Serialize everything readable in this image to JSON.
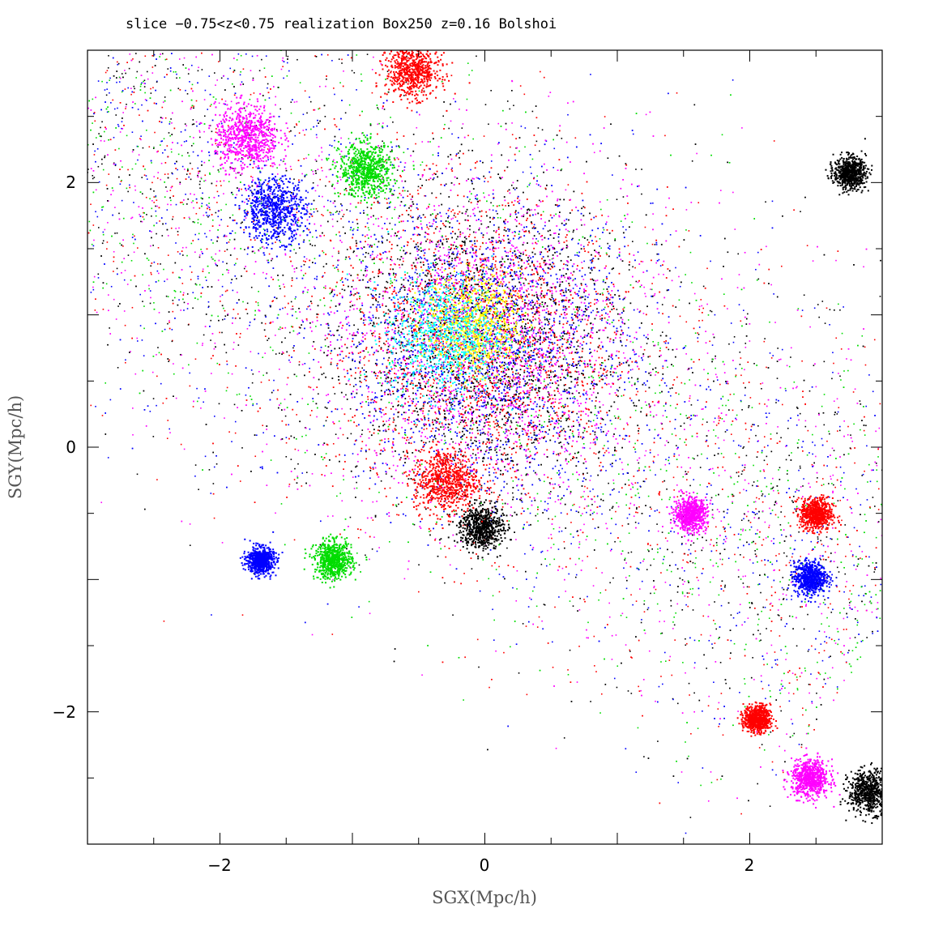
{
  "chart_data": {
    "type": "scatter",
    "title": "slice −0.75<z<0.75 realization Box250 z=0.16 Bolshoi",
    "xlabel": "SGX(Mpc/h)",
    "ylabel": "SGY(Mpc/h)",
    "xlim": [
      -3,
      3
    ],
    "ylim": [
      -3,
      3
    ],
    "x_ticks": [
      -2,
      0,
      2
    ],
    "y_ticks": [
      -2,
      0,
      2
    ],
    "x_tick_labels": [
      "−2",
      "0",
      "2"
    ],
    "y_tick_labels": [
      "−2",
      "0",
      "2"
    ],
    "grid": false,
    "legend": "none",
    "series_colors": [
      "#000000",
      "#ff0000",
      "#0000ff",
      "#00dd00",
      "#ff00ff",
      "#00ffff",
      "#ffff00"
    ],
    "clusters": [
      {
        "x": -0.1,
        "y": 0.93,
        "color": "#ffff00",
        "spread": 0.18
      },
      {
        "x": -0.3,
        "y": 0.85,
        "color": "#00ffff",
        "spread": 0.22
      },
      {
        "x": -1.8,
        "y": 2.35,
        "color": "#ff00ff",
        "spread": 0.12
      },
      {
        "x": -0.55,
        "y": 2.85,
        "color": "#ff0000",
        "spread": 0.1
      },
      {
        "x": -1.6,
        "y": 1.8,
        "color": "#0000ff",
        "spread": 0.12
      },
      {
        "x": -0.9,
        "y": 2.1,
        "color": "#00dd00",
        "spread": 0.1
      },
      {
        "x": -0.03,
        "y": -0.6,
        "color": "#000000",
        "spread": 0.08
      },
      {
        "x": 2.75,
        "y": 2.08,
        "color": "#000000",
        "spread": 0.06
      },
      {
        "x": 2.5,
        "y": -0.5,
        "color": "#ff0000",
        "spread": 0.06
      },
      {
        "x": 2.45,
        "y": -0.98,
        "color": "#0000ff",
        "spread": 0.06
      },
      {
        "x": 2.45,
        "y": -2.5,
        "color": "#ff00ff",
        "spread": 0.07
      },
      {
        "x": 2.9,
        "y": -2.6,
        "color": "#000000",
        "spread": 0.08
      },
      {
        "x": 1.55,
        "y": -0.5,
        "color": "#ff00ff",
        "spread": 0.06
      },
      {
        "x": -1.15,
        "y": -0.85,
        "color": "#00dd00",
        "spread": 0.07
      },
      {
        "x": -1.7,
        "y": -0.85,
        "color": "#0000ff",
        "spread": 0.05
      },
      {
        "x": 2.05,
        "y": -2.05,
        "color": "#ff0000",
        "spread": 0.05
      },
      {
        "x": -0.3,
        "y": -0.25,
        "color": "#ff0000",
        "spread": 0.12
      }
    ]
  }
}
